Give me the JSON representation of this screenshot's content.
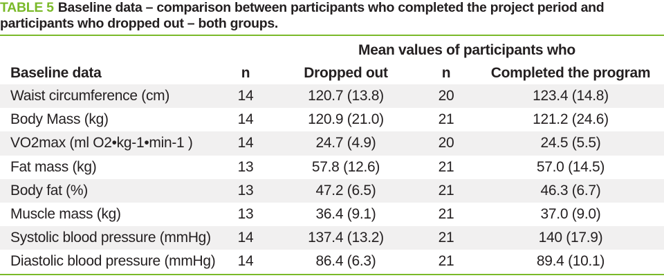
{
  "caption": {
    "label": "TABLE 5",
    "text": "Baseline data – comparison between participants who completed the project period and participants who dropped out – both groups."
  },
  "colors": {
    "accent": "#7ab929",
    "row_shade": "#f1f0f0",
    "text": "#231f20"
  },
  "table": {
    "group_header": "Mean values of participants who",
    "columns": [
      "Baseline data",
      "n",
      "Dropped out",
      "n",
      "Completed the program"
    ],
    "rows": [
      [
        "Waist circumference (cm)",
        "14",
        "120.7 (13.8)",
        "20",
        "123.4 (14.8)"
      ],
      [
        "Body Mass (kg)",
        "14",
        "120.9 (21.0)",
        "21",
        "121.2 (24.6)"
      ],
      [
        "VO2max (ml O2•kg-1•min-1 )",
        "14",
        "24.7 (4.9)",
        "20",
        "24.5 (5.5)"
      ],
      [
        "Fat mass (kg)",
        "13",
        "57.8 (12.6)",
        "21",
        "57.0 (14.5)"
      ],
      [
        "Body fat (%)",
        "13",
        "47.2 (6.5)",
        "21",
        "46.3 (6.7)"
      ],
      [
        "Muscle mass (kg)",
        "13",
        "36.4 (9.1)",
        "21",
        "37.0 (9.0)"
      ],
      [
        "Systolic blood pressure (mmHg)",
        "14",
        "137.4 (13.2)",
        "21",
        "140 (17.9)"
      ],
      [
        "Diastolic blood pressure (mmHg)",
        "14",
        "86.4 (6.3)",
        "21",
        "89.4 (10.1)"
      ]
    ]
  }
}
